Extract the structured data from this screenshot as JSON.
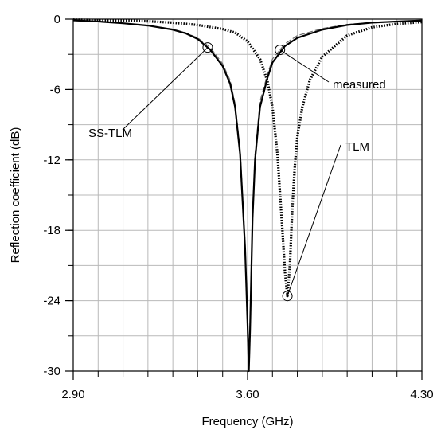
{
  "chart_data": {
    "type": "line",
    "title": "",
    "xlabel": "Frequency (GHz)",
    "ylabel": "Reflection coefficient (dB)",
    "xlim": [
      2.9,
      4.3
    ],
    "ylim": [
      -30,
      0
    ],
    "x_tick_labels": [
      "2.90",
      "3.60",
      "4.30"
    ],
    "y_tick_labels": [
      "0",
      "-6",
      "-12",
      "-18",
      "-24",
      "-30"
    ],
    "grid": true,
    "series": [
      {
        "name": "SS-TLM",
        "style": "solid",
        "color": "#000000",
        "x": [
          2.9,
          3.0,
          3.1,
          3.2,
          3.3,
          3.35,
          3.4,
          3.45,
          3.5,
          3.53,
          3.55,
          3.57,
          3.59,
          3.6,
          3.605,
          3.61,
          3.62,
          3.63,
          3.65,
          3.68,
          3.7,
          3.75,
          3.8,
          3.9,
          4.0,
          4.1,
          4.2,
          4.3
        ],
        "y": [
          -0.1,
          -0.2,
          -0.35,
          -0.55,
          -0.9,
          -1.2,
          -1.7,
          -2.6,
          -4.0,
          -5.5,
          -7.5,
          -11.5,
          -19.5,
          -26.0,
          -30.0,
          -26.5,
          -17.0,
          -12.0,
          -7.5,
          -5.0,
          -3.7,
          -2.3,
          -1.6,
          -0.9,
          -0.5,
          -0.3,
          -0.2,
          -0.12
        ]
      },
      {
        "name": "measured",
        "style": "dashed",
        "color": "#6a6a6a",
        "x": [
          2.9,
          3.0,
          3.1,
          3.2,
          3.3,
          3.35,
          3.4,
          3.45,
          3.5,
          3.53,
          3.55,
          3.57,
          3.59,
          3.6,
          3.605,
          3.61,
          3.62,
          3.63,
          3.65,
          3.68,
          3.7,
          3.75,
          3.8,
          3.9,
          4.0,
          4.1,
          4.2,
          4.3
        ],
        "y": [
          -0.12,
          -0.22,
          -0.35,
          -0.55,
          -0.85,
          -1.15,
          -1.6,
          -2.4,
          -3.8,
          -5.2,
          -7.2,
          -11.0,
          -19.0,
          -25.5,
          -29.5,
          -26.0,
          -16.5,
          -11.5,
          -7.0,
          -4.7,
          -3.4,
          -2.1,
          -1.4,
          -0.8,
          -0.45,
          -0.28,
          -0.18,
          -0.1
        ]
      },
      {
        "name": "TLM",
        "style": "dotted",
        "color": "#000000",
        "x": [
          2.9,
          3.0,
          3.1,
          3.2,
          3.3,
          3.4,
          3.5,
          3.55,
          3.6,
          3.65,
          3.68,
          3.7,
          3.72,
          3.74,
          3.75,
          3.76,
          3.77,
          3.78,
          3.79,
          3.8,
          3.82,
          3.85,
          3.9,
          4.0,
          4.1,
          4.2,
          4.3
        ],
        "y": [
          -0.05,
          -0.08,
          -0.12,
          -0.18,
          -0.3,
          -0.5,
          -0.85,
          -1.15,
          -1.9,
          -3.4,
          -5.3,
          -7.5,
          -11.5,
          -18.0,
          -21.5,
          -23.6,
          -21.0,
          -16.0,
          -12.5,
          -10.0,
          -7.5,
          -5.2,
          -3.2,
          -1.4,
          -0.7,
          -0.4,
          -0.25
        ]
      }
    ],
    "annotations": [
      {
        "text": "SS-TLM",
        "target_series": "SS-TLM",
        "target_x": 3.44
      },
      {
        "text": "measured",
        "target_series": "measured",
        "target_x": 3.73
      },
      {
        "text": "TLM",
        "target_series": "TLM",
        "target_x": 3.76
      }
    ]
  }
}
